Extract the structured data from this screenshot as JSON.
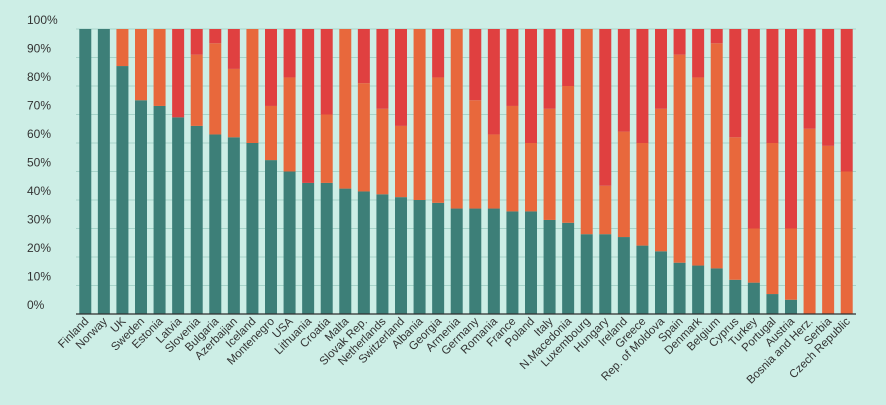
{
  "chart_data": {
    "type": "bar",
    "stacked": true,
    "percent": true,
    "ylim": [
      0,
      100
    ],
    "yticks": [
      0,
      10,
      20,
      30,
      40,
      50,
      60,
      70,
      80,
      90,
      100
    ],
    "ytick_labels": [
      "0%",
      "10%",
      "20%",
      "30%",
      "40%",
      "50%",
      "60%",
      "70%",
      "80%",
      "90%",
      "100%"
    ],
    "grid": true,
    "legend": "none",
    "categories": [
      "Finland",
      "Norway",
      "UK",
      "Sweden",
      "Estonia",
      "Latvia",
      "Slovenia",
      "Bulgaria",
      "Azerbaijan",
      "Iceland",
      "Montenegro",
      "USA",
      "Lithuania",
      "Croatia",
      "Malta",
      "Slovak Rep.",
      "Netherlands",
      "Switzerland",
      "Albania",
      "Georgia",
      "Armenia",
      "Germany",
      "Romania",
      "France",
      "Poland",
      "Italy",
      "N.Macedonia",
      "Luxembourg",
      "Hungary",
      "Ireland",
      "Greece",
      "Rep. of Moldova",
      "Spain",
      "Denmark",
      "Belgium",
      "Cyprus",
      "Turkey",
      "Portugal",
      "Austria",
      "Bosnia and Herz.",
      "Serbia",
      "Czech Republic"
    ],
    "series": [
      {
        "color": "#3d7f78",
        "values": [
          100,
          100,
          87,
          75,
          73,
          69,
          66,
          63,
          62,
          60,
          54,
          50,
          46,
          46,
          44,
          43,
          42,
          41,
          40,
          39,
          37,
          37,
          37,
          36,
          36,
          33,
          32,
          28,
          28,
          27,
          24,
          22,
          18,
          17,
          16,
          12,
          11,
          7,
          5,
          0,
          0,
          0
        ]
      },
      {
        "color": "#e8683c",
        "values": [
          0,
          0,
          13,
          25,
          27,
          0,
          25,
          32,
          24,
          40,
          19,
          33,
          0,
          24,
          56,
          38,
          30,
          25,
          60,
          44,
          63,
          38,
          26,
          37,
          24,
          39,
          48,
          72,
          17,
          37,
          36,
          50,
          73,
          66,
          79,
          50,
          19,
          53,
          25,
          65,
          59,
          50
        ]
      },
      {
        "color": "#e04040",
        "values": [
          0,
          0,
          0,
          0,
          0,
          31,
          9,
          5,
          14,
          0,
          27,
          17,
          54,
          30,
          0,
          19,
          28,
          34,
          0,
          17,
          0,
          25,
          37,
          27,
          40,
          28,
          20,
          0,
          55,
          36,
          40,
          28,
          9,
          17,
          5,
          38,
          70,
          40,
          70,
          35,
          41,
          50
        ]
      }
    ]
  }
}
